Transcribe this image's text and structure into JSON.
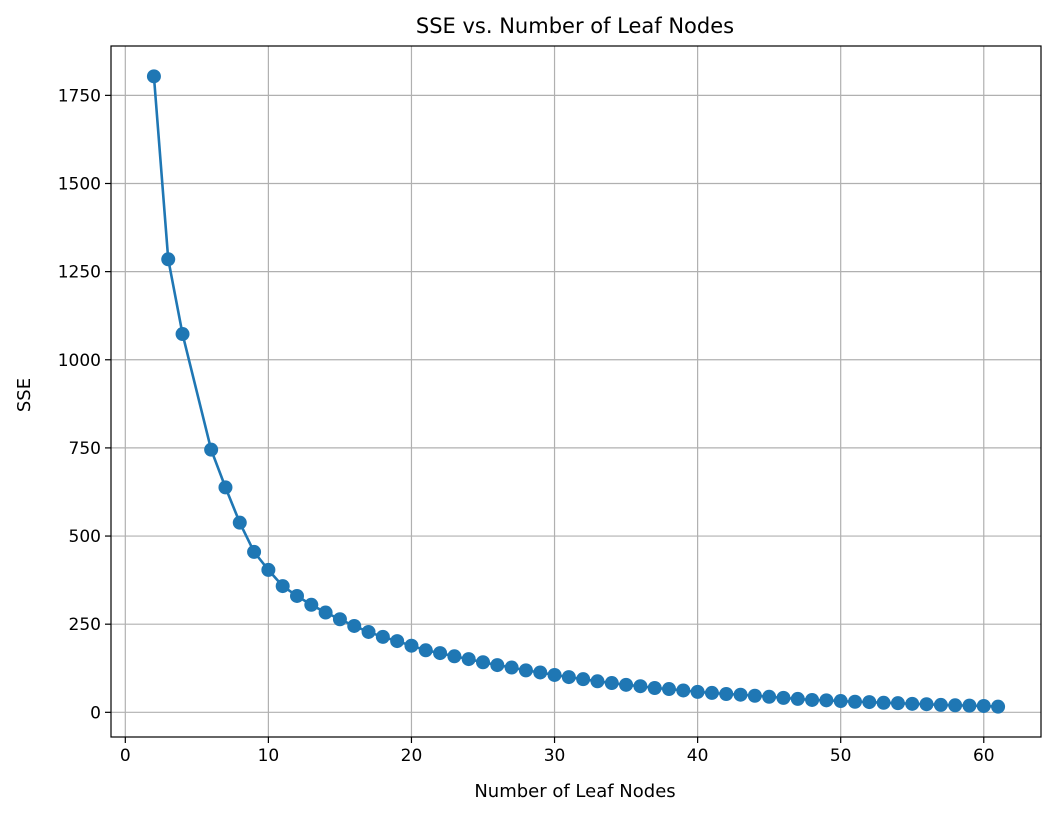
{
  "chart_data": {
    "type": "line",
    "title": "SSE vs. Number of Leaf Nodes",
    "xlabel": "Number of Leaf Nodes",
    "ylabel": "SSE",
    "xlim": [
      -1,
      64
    ],
    "ylim": [
      -70,
      1890
    ],
    "xticks": [
      0,
      10,
      20,
      30,
      40,
      50,
      60
    ],
    "yticks": [
      0,
      250,
      500,
      750,
      1000,
      1250,
      1500,
      1750
    ],
    "grid": true,
    "markers": true,
    "colors": {
      "series": "#1f77b4",
      "grid": "#b0b0b0",
      "axis": "#000000"
    },
    "series": [
      {
        "x": [
          2,
          3,
          4,
          6,
          7,
          8,
          9,
          10,
          11,
          12,
          13,
          14,
          15,
          16,
          17,
          18,
          19,
          20,
          21,
          22,
          23,
          24,
          25,
          26,
          27,
          28,
          29,
          30,
          31,
          32,
          33,
          34,
          35,
          36,
          37,
          38,
          39,
          40,
          41,
          42,
          43,
          44,
          45,
          46,
          47,
          48,
          49,
          50,
          51,
          52,
          53,
          54,
          55,
          56,
          57,
          58,
          59,
          60,
          61
        ],
        "y": [
          1804,
          1285,
          1073,
          745,
          638,
          538,
          455,
          404,
          358,
          330,
          305,
          283,
          264,
          245,
          228,
          214,
          202,
          189,
          176,
          168,
          159,
          151,
          142,
          134,
          127,
          119,
          113,
          106,
          100,
          94,
          88,
          83,
          78,
          74,
          69,
          66,
          62,
          58,
          55,
          52,
          50,
          47,
          44,
          41,
          38,
          35,
          34,
          32,
          30,
          29,
          27,
          26,
          24,
          23,
          21,
          20,
          19,
          18,
          16
        ]
      }
    ]
  }
}
